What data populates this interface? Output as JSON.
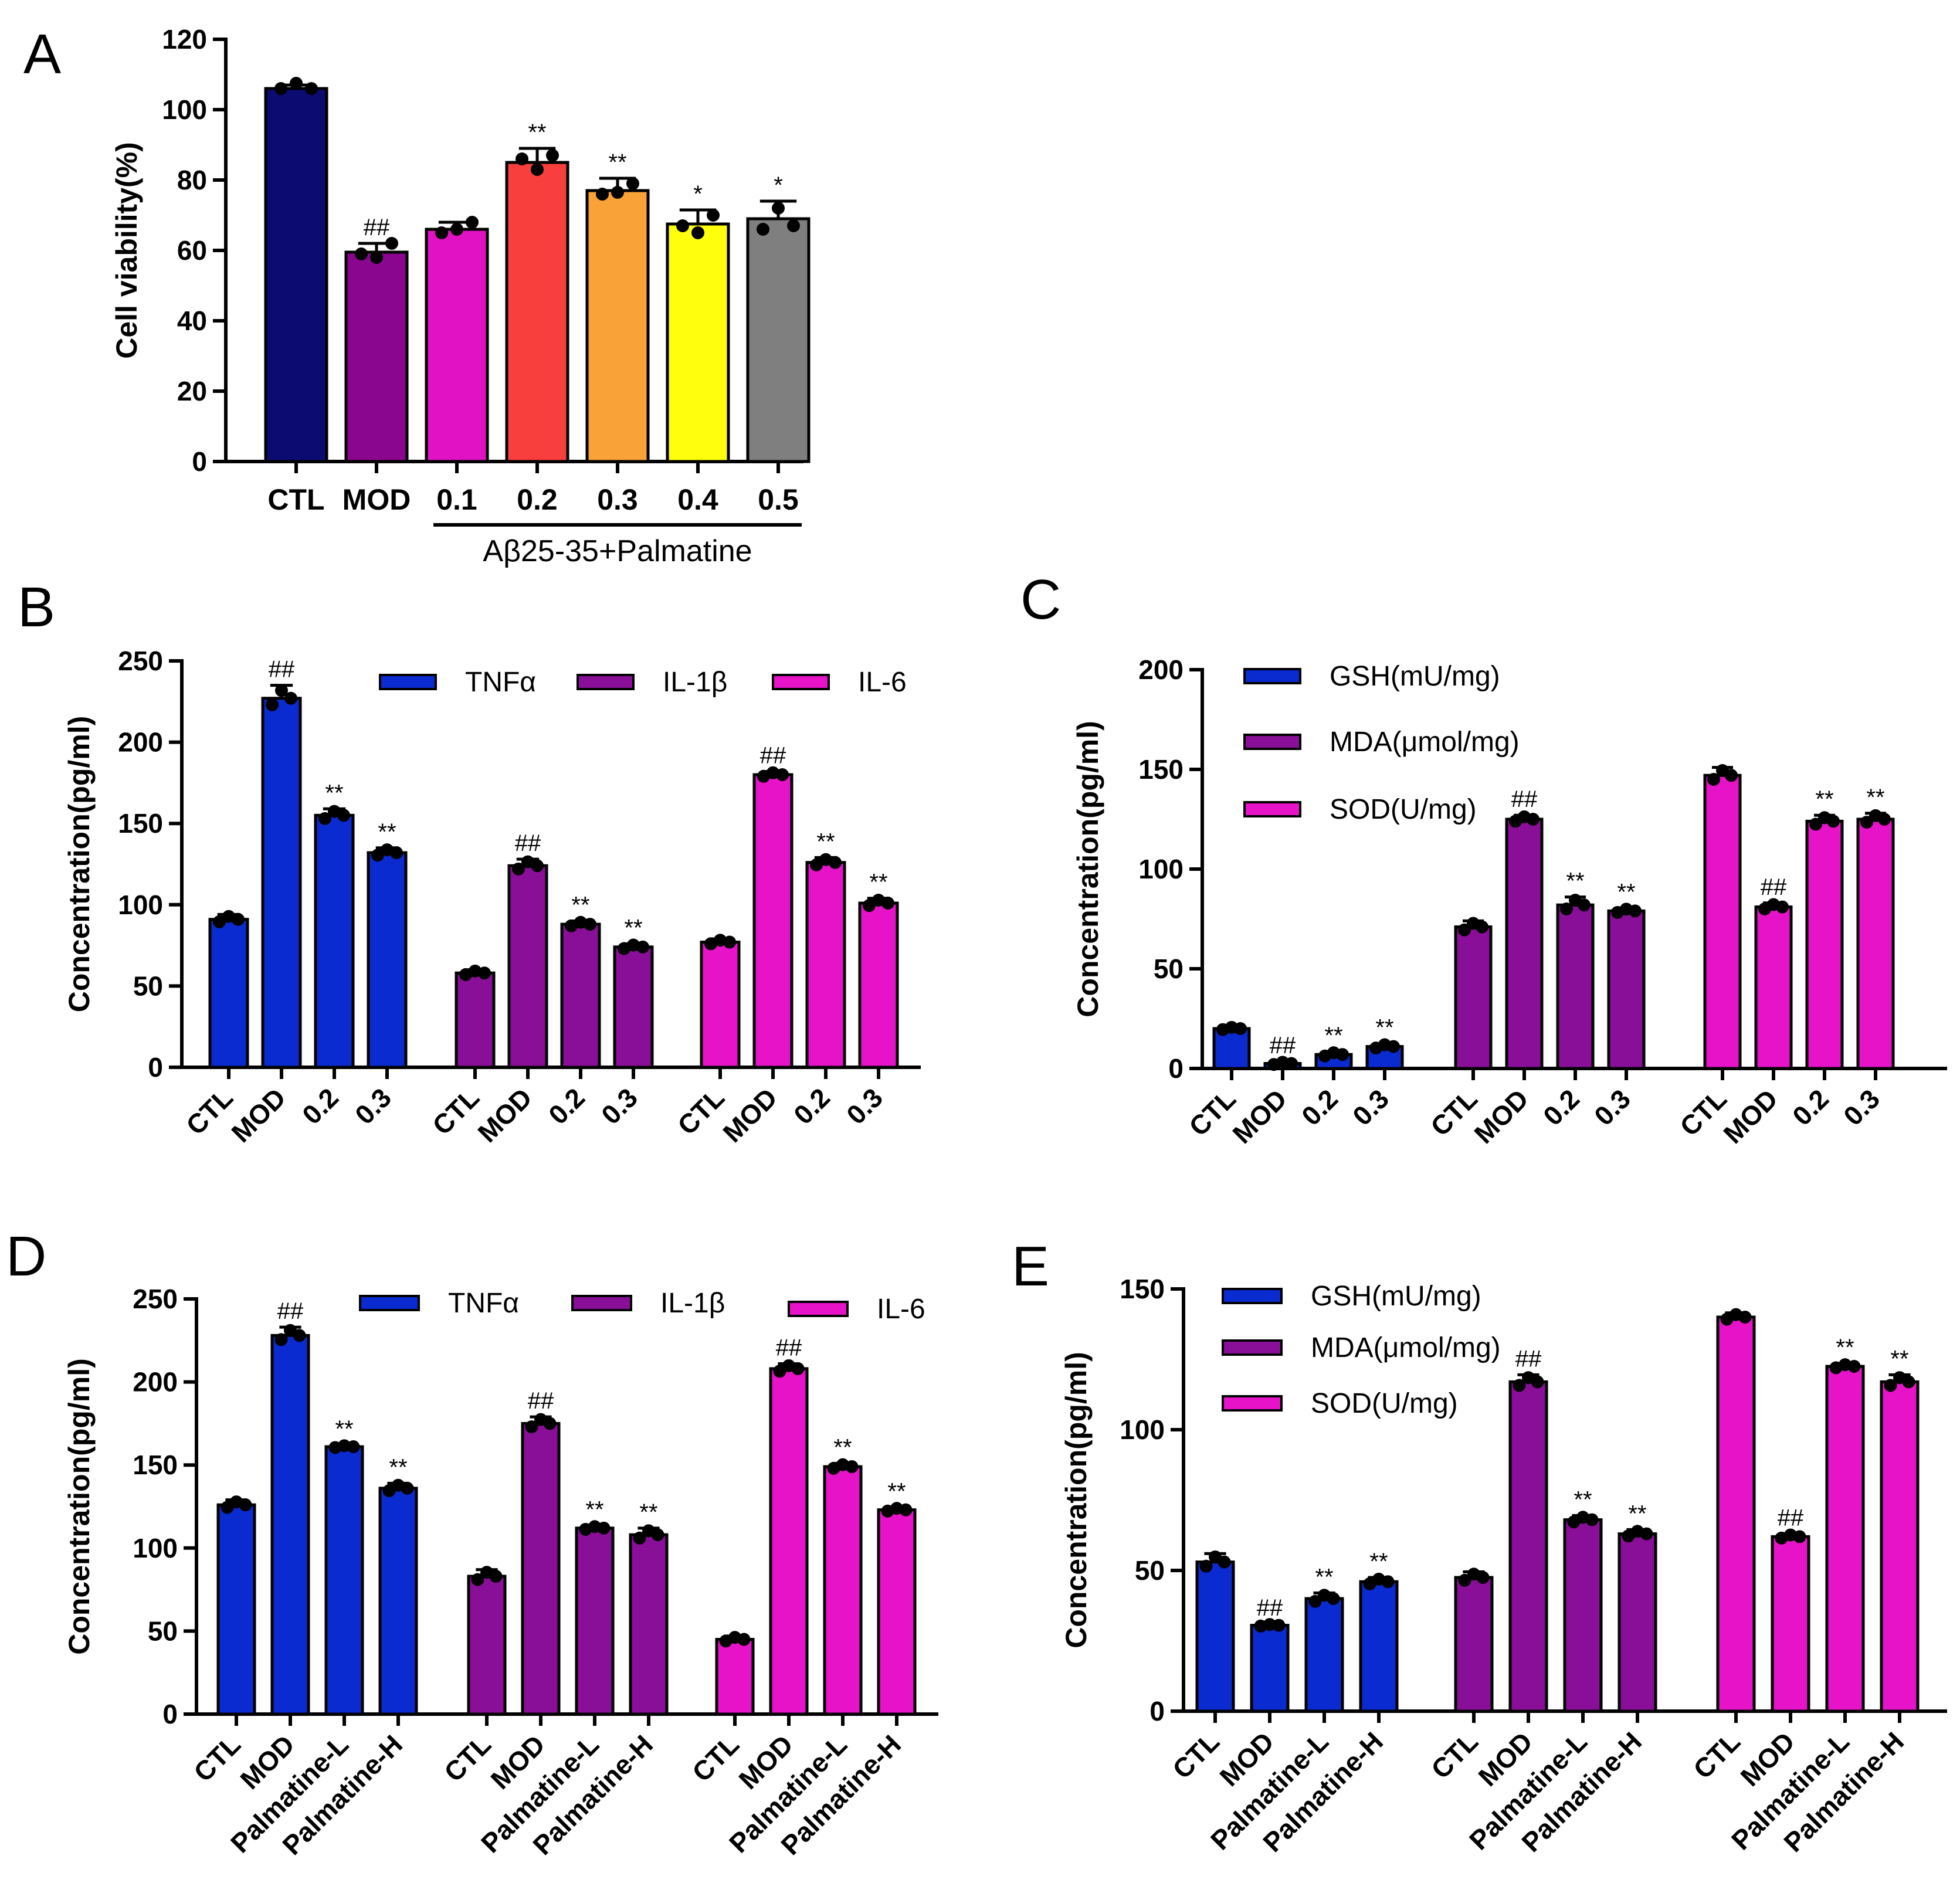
{
  "figure": {
    "colors": {
      "CTL": "#0b0b72",
      "MOD": "#8a068f",
      "0.1": "#e012c3",
      "0.2": "#f83f3d",
      "0.3": "#f9a237",
      "0.4": "#ffff0d",
      "0.5": "#7f7f7f",
      "blue": "#0a2bcf",
      "purple": "#8a0f98",
      "magenta": "#e613c9"
    }
  },
  "chart_data": [
    {
      "id": "A",
      "panel": "A",
      "type": "bar",
      "ylabel": "Cell viability(%)",
      "ylim": [
        0,
        120
      ],
      "yticks": [
        "0",
        "20",
        "40",
        "60",
        "80",
        "100",
        "120"
      ],
      "categories": [
        "CTL",
        "MOD",
        "0.1",
        "0.2",
        "0.3",
        "0.4",
        "0.5"
      ],
      "values": [
        106,
        59.5,
        66,
        85,
        77,
        67.5,
        69
      ],
      "errors": [
        1,
        2.5,
        2,
        4,
        3.5,
        4,
        5
      ],
      "points": [
        [
          106,
          107.5,
          106
        ],
        [
          59,
          58,
          62
        ],
        [
          65,
          66,
          68
        ],
        [
          86,
          83,
          87
        ],
        [
          76,
          76.5,
          79
        ],
        [
          67,
          65,
          70
        ],
        [
          66,
          72,
          67
        ]
      ],
      "annotations": [
        "",
        "##",
        "",
        "**",
        "**",
        "*",
        "*"
      ],
      "colors": [
        "#0b0b72",
        "#8a068f",
        "#e012c3",
        "#f83f3d",
        "#f9a237",
        "#ffff0d",
        "#7f7f7f"
      ],
      "group_label": "Aβ25-35+Palmatine"
    },
    {
      "id": "B",
      "panel": "B",
      "type": "bar",
      "ylabel": "Concentration(pg/ml)",
      "ylim": [
        0,
        250
      ],
      "yticks": [
        "0",
        "50",
        "100",
        "150",
        "200",
        "250"
      ],
      "categories": [
        "CTL",
        "MOD",
        "0.2",
        "0.3"
      ],
      "legend": [
        {
          "label": "TNFα",
          "color": "#0a2bcf"
        },
        {
          "label": "IL-1β",
          "color": "#8a0f98"
        },
        {
          "label": "IL-6",
          "color": "#e613c9"
        }
      ],
      "series": [
        {
          "name": "TNFα",
          "values": [
            91,
            227,
            155,
            132
          ],
          "errors": [
            3,
            8,
            4,
            3
          ],
          "annotations": [
            "",
            "##",
            "**",
            "**"
          ]
        },
        {
          "name": "IL-1β",
          "values": [
            58,
            124,
            88,
            74
          ],
          "errors": [
            2,
            4,
            2,
            2
          ],
          "annotations": [
            "",
            "##",
            "**",
            "**"
          ]
        },
        {
          "name": "IL-6",
          "values": [
            77,
            180,
            126,
            101
          ],
          "errors": [
            2,
            2,
            3,
            3
          ],
          "annotations": [
            "",
            "##",
            "**",
            "**"
          ]
        }
      ]
    },
    {
      "id": "C",
      "panel": "C",
      "type": "bar",
      "ylabel": "Concentration(pg/ml)",
      "ylim": [
        0,
        200
      ],
      "yticks": [
        "0",
        "50",
        "100",
        "150",
        "200"
      ],
      "categories": [
        "CTL",
        "MOD",
        "0.2",
        "0.3"
      ],
      "legend": [
        {
          "label": "GSH(mU/mg)",
          "color": "#0a2bcf"
        },
        {
          "label": "MDA(μmol/mg)",
          "color": "#8a0f98"
        },
        {
          "label": "SOD(U/mg)",
          "color": "#e613c9"
        }
      ],
      "series": [
        {
          "name": "GSH(mU/mg)",
          "values": [
            20,
            2.5,
            7,
            11
          ],
          "errors": [
            1,
            1,
            1.5,
            1.5
          ],
          "annotations": [
            "",
            "##",
            "**",
            "**"
          ]
        },
        {
          "name": "MDA(μmol/mg)",
          "values": [
            71,
            125,
            82,
            79
          ],
          "errors": [
            3,
            2,
            4,
            1.5
          ],
          "annotations": [
            "",
            "##",
            "**",
            "**"
          ]
        },
        {
          "name": "SOD(U/mg)",
          "values": [
            147,
            81,
            124,
            125
          ],
          "errors": [
            4,
            2,
            3,
            3
          ],
          "annotations": [
            "",
            "##",
            "**",
            "**"
          ]
        }
      ]
    },
    {
      "id": "D",
      "panel": "D",
      "type": "bar",
      "ylabel": "Concentration(pg/ml)",
      "ylim": [
        0,
        250
      ],
      "yticks": [
        "0",
        "50",
        "100",
        "150",
        "200",
        "250"
      ],
      "categories": [
        "CTL",
        "MOD",
        "Palmatine-L",
        "Palmatine-H"
      ],
      "legend": [
        {
          "label": "TNFα",
          "color": "#0a2bcf"
        },
        {
          "label": "IL-1β",
          "color": "#8a0f98"
        },
        {
          "label": "IL-6",
          "color": "#e613c9"
        }
      ],
      "series": [
        {
          "name": "TNFα",
          "values": [
            126,
            228,
            161,
            136
          ],
          "errors": [
            3,
            5,
            1,
            3
          ],
          "annotations": [
            "",
            "##",
            "**",
            "**"
          ]
        },
        {
          "name": "IL-1β",
          "values": [
            83,
            175,
            112,
            108
          ],
          "errors": [
            4,
            4,
            1.5,
            4
          ],
          "annotations": [
            "",
            "##",
            "**",
            "**"
          ]
        },
        {
          "name": "IL-6",
          "values": [
            45,
            208,
            149,
            123
          ],
          "errors": [
            2,
            3,
            2,
            1.5
          ],
          "annotations": [
            "",
            "##",
            "**",
            "**"
          ]
        }
      ]
    },
    {
      "id": "E",
      "panel": "E",
      "type": "bar",
      "ylabel": "Concentration(pg/ml)",
      "ylim": [
        0,
        150
      ],
      "yticks": [
        "0",
        "50",
        "100",
        "150"
      ],
      "categories": [
        "CTL",
        "MOD",
        "Palmatine-L",
        "Palmatine-H"
      ],
      "legend": [
        {
          "label": "GSH(mU/mg)",
          "color": "#0a2bcf"
        },
        {
          "label": "MDA(μmol/mg)",
          "color": "#8a0f98"
        },
        {
          "label": "SOD(U/mg)",
          "color": "#e613c9"
        }
      ],
      "series": [
        {
          "name": "GSH(mU/mg)",
          "values": [
            53,
            30.5,
            40,
            46
          ],
          "errors": [
            3,
            0.5,
            2,
            1.5
          ],
          "annotations": [
            "",
            "##",
            "**",
            "**"
          ]
        },
        {
          "name": "MDA(μmol/mg)",
          "values": [
            47.5,
            117,
            68,
            63
          ],
          "errors": [
            2,
            2.5,
            1.5,
            1.5
          ],
          "annotations": [
            "",
            "##",
            "**",
            "**"
          ]
        },
        {
          "name": "SOD(U/mg)",
          "values": [
            140,
            62,
            122.5,
            117
          ],
          "errors": [
            1.5,
            1,
            1,
            2.5
          ],
          "annotations": [
            "",
            "##",
            "**",
            "**"
          ]
        }
      ]
    }
  ]
}
